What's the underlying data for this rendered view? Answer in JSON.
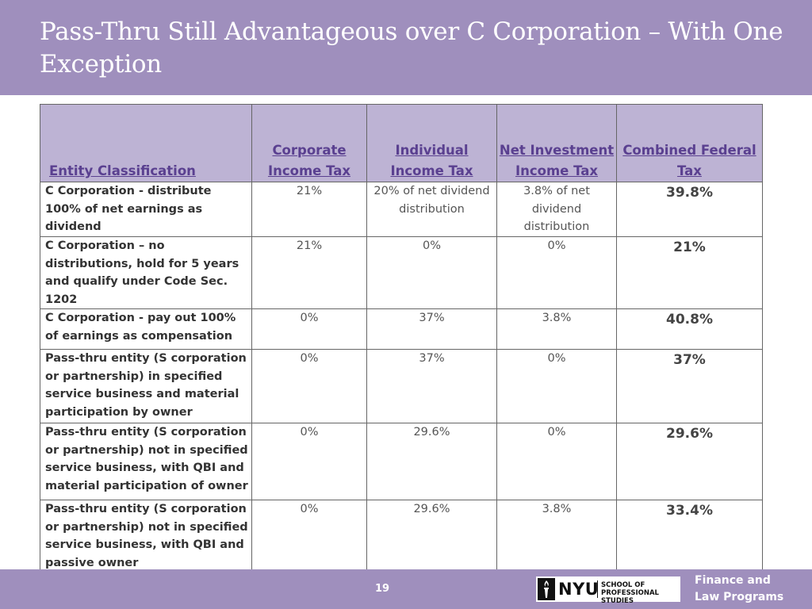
{
  "slide": {
    "title": "Pass-Thru Still Advantageous over C Corporation – With One Exception",
    "page_number": "19"
  },
  "table": {
    "headers": [
      "Entity Classification",
      "Corporate Income Tax",
      "Individual Income Tax",
      "Net Investment Income Tax",
      "Combined Federal Tax"
    ],
    "rows": [
      {
        "entity": "C Corporation - distribute 100% of net earnings as dividend",
        "corporate": "21%",
        "individual": "20% of net dividend distribution",
        "niit": "3.8% of net dividend distribution",
        "combined": "39.8%"
      },
      {
        "entity": "C Corporation – no distributions, hold for 5 years and qualify under Code Sec. 1202",
        "corporate": "21%",
        "individual": "0%",
        "niit": "0%",
        "combined": "21%"
      },
      {
        "entity": "C Corporation - pay out 100% of earnings as compensation",
        "corporate": "0%",
        "individual": "37%",
        "niit": "3.8%",
        "combined": "40.8%"
      },
      {
        "entity": "Pass-thru entity (S corporation or partnership) in specified service business and material participation by owner",
        "corporate": "0%",
        "individual": "37%",
        "niit": "0%",
        "combined": "37%"
      },
      {
        "entity": "Pass-thru entity (S corporation or partnership) not in specified service business, with QBI and material participation of owner",
        "corporate": "0%",
        "individual": "29.6%",
        "niit": "0%",
        "combined": "29.6%"
      },
      {
        "entity": "Pass-thru entity (S corporation or partnership) not in specified service business, with QBI and passive owner",
        "corporate": "0%",
        "individual": "29.6%",
        "niit": "3.8%",
        "combined": "33.4%"
      }
    ]
  },
  "footer": {
    "logo_nyu": "NYU",
    "logo_school": "SCHOOL OF\nPROFESSIONAL STUDIES",
    "logo_icon": "torch-icon",
    "program": "Finance and\nLaw Programs"
  },
  "colors": {
    "bar": "#9f8fbd",
    "header_fill": "#bdb3d4",
    "header_text": "#5a4090"
  }
}
